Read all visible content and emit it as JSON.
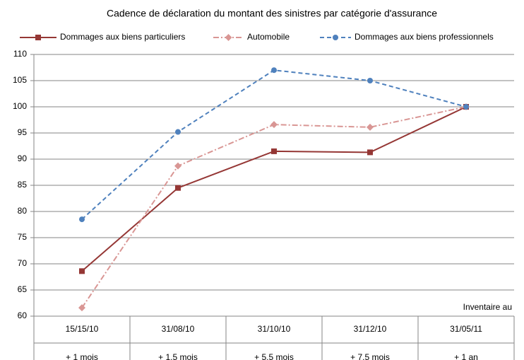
{
  "chart_data": {
    "type": "line",
    "title": "Cadence de déclaration du montant des sinistres par catégorie d'assurance",
    "categories": [
      "15/15/10",
      "31/08/10",
      "31/10/10",
      "31/12/10",
      "31/05/11"
    ],
    "category_sublabels": [
      "+ 1 mois",
      "+ 1,5 mois",
      "+ 5,5 mois",
      "+ 7,5 mois",
      "+ 1 an"
    ],
    "annotation": "Inventaire au",
    "series": [
      {
        "name": "Dommages aux biens particuliers",
        "color": "#953735",
        "marker": "square",
        "dash": "solid",
        "values": [
          68.6,
          84.5,
          91.5,
          91.3,
          100
        ]
      },
      {
        "name": "Automobile",
        "color": "#d99694",
        "marker": "diamond",
        "dash": "dashdot",
        "values": [
          61.6,
          88.7,
          96.6,
          96.1,
          100
        ]
      },
      {
        "name": "Dommages aux biens professionnels",
        "color": "#4f81bd",
        "marker": "circle",
        "dash": "dashed",
        "values": [
          78.5,
          95.2,
          107,
          105,
          100
        ]
      }
    ],
    "ylim": [
      60,
      110
    ],
    "yticks": [
      60,
      65,
      70,
      75,
      80,
      85,
      90,
      95,
      100,
      105,
      110
    ],
    "grid": true,
    "legend": "top"
  }
}
